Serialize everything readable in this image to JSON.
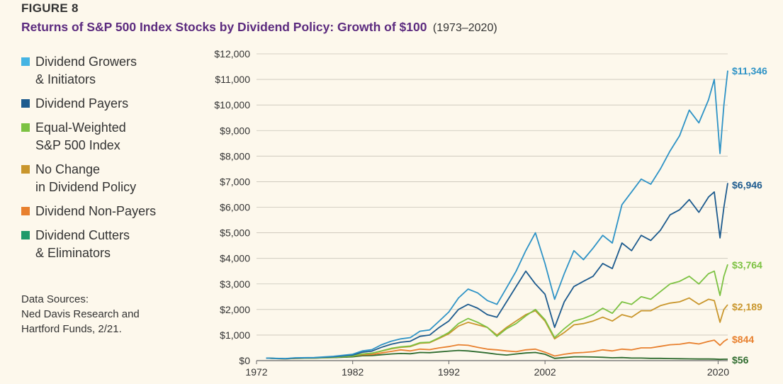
{
  "figure_label": "FIGURE 8",
  "title": "Returns of S&P 500 Index Stocks by Dividend Policy: Growth of $100",
  "title_years": "(1973–2020)",
  "source_note": "Data Sources:\nNed Davis Research and\nHartford Funds, 2/21.",
  "chart_data": {
    "type": "line",
    "title": "Returns of S&P 500 Index Stocks by Dividend Policy: Growth of $100",
    "subtitle": "(1973–2020)",
    "xlabel": "",
    "ylabel": "",
    "xlim": [
      1972,
      2021
    ],
    "ylim": [
      0,
      12000
    ],
    "x_ticks": [
      1972,
      1982,
      1992,
      2002,
      2020
    ],
    "y_ticks": [
      0,
      1000,
      2000,
      3000,
      4000,
      5000,
      6000,
      7000,
      8000,
      9000,
      10000,
      11000,
      12000
    ],
    "y_tick_labels": [
      "$0",
      "$1,000",
      "$2,000",
      "$3,000",
      "$4,000",
      "$5,000",
      "$6,000",
      "$7,000",
      "$8,000",
      "$9,000",
      "$10,000",
      "$11,000",
      "$12,000"
    ],
    "grid": "horizontal",
    "legend_position": "left",
    "series": [
      {
        "name": "Dividend Growers & Initiators",
        "legend_text": "Dividend Growers\n& Initiators",
        "color": "#45b4e3",
        "line_color": "#2e93c6",
        "end_label": "$11,346",
        "x": [
          1973,
          1974,
          1975,
          1976,
          1978,
          1980,
          1982,
          1983,
          1984,
          1985,
          1986,
          1987,
          1988,
          1989,
          1990,
          1991,
          1992,
          1993,
          1994,
          1995,
          1996,
          1997,
          1998,
          1999,
          2000,
          2001,
          2002,
          2003,
          2004,
          2005,
          2006,
          2007,
          2008,
          2009,
          2010,
          2011,
          2012,
          2013,
          2014,
          2015,
          2016,
          2017,
          2018,
          2019,
          2019.6,
          2020.2,
          2020.6,
          2021
        ],
        "y": [
          100,
          90,
          80,
          110,
          120,
          170,
          250,
          380,
          430,
          620,
          760,
          850,
          900,
          1150,
          1200,
          1550,
          1900,
          2450,
          2800,
          2650,
          2350,
          2200,
          2850,
          3500,
          4300,
          5000,
          3800,
          2400,
          3400,
          4300,
          3950,
          4400,
          4900,
          4600,
          6100,
          6600,
          7100,
          6900,
          7500,
          8200,
          8800,
          9800,
          9300,
          10200,
          11000,
          8100,
          10000,
          11346
        ]
      },
      {
        "name": "Dividend Payers",
        "legend_text": "Dividend Payers",
        "color": "#1d5b8e",
        "line_color": "#1d5b8e",
        "end_label": "$6,946",
        "x": [
          1973,
          1974,
          1975,
          1976,
          1978,
          1980,
          1982,
          1983,
          1984,
          1985,
          1986,
          1987,
          1988,
          1989,
          1990,
          1991,
          1992,
          1993,
          1994,
          1995,
          1996,
          1997,
          1998,
          1999,
          2000,
          2001,
          2002,
          2003,
          2004,
          2005,
          2006,
          2007,
          2008,
          2009,
          2010,
          2011,
          2012,
          2013,
          2014,
          2015,
          2016,
          2017,
          2018,
          2019,
          2019.6,
          2020.2,
          2020.6,
          2021
        ],
        "y": [
          100,
          85,
          75,
          100,
          110,
          150,
          220,
          330,
          370,
          520,
          640,
          720,
          760,
          950,
          1000,
          1300,
          1550,
          2000,
          2200,
          2050,
          1800,
          1700,
          2300,
          2900,
          3500,
          3000,
          2600,
          1300,
          2300,
          2900,
          3100,
          3300,
          3800,
          3600,
          4600,
          4300,
          4900,
          4700,
          5100,
          5700,
          5900,
          6300,
          5800,
          6400,
          6600,
          4800,
          6000,
          6946
        ]
      },
      {
        "name": "Equal-Weighted S&P 500 Index",
        "legend_text": "Equal-Weighted\nS&P 500 Index",
        "color": "#7cc242",
        "line_color": "#7cc242",
        "end_label": "$3,764",
        "x": [
          1973,
          1974,
          1975,
          1976,
          1978,
          1980,
          1982,
          1983,
          1984,
          1985,
          1986,
          1987,
          1988,
          1989,
          1990,
          1991,
          1992,
          1993,
          1994,
          1995,
          1996,
          1997,
          1998,
          1999,
          2000,
          2001,
          2002,
          2003,
          2004,
          2005,
          2006,
          2007,
          2008,
          2009,
          2010,
          2011,
          2012,
          2013,
          2014,
          2015,
          2016,
          2017,
          2018,
          2019,
          2019.6,
          2020.2,
          2020.6,
          2021
        ],
        "y": [
          100,
          85,
          75,
          95,
          100,
          130,
          180,
          260,
          290,
          380,
          480,
          540,
          570,
          700,
          720,
          900,
          1100,
          1450,
          1650,
          1500,
          1300,
          950,
          1250,
          1450,
          1750,
          2000,
          1600,
          900,
          1250,
          1550,
          1650,
          1800,
          2050,
          1850,
          2300,
          2200,
          2500,
          2400,
          2700,
          3000,
          3100,
          3300,
          3000,
          3400,
          3500,
          2550,
          3300,
          3764
        ]
      },
      {
        "name": "No Change in Dividend Policy",
        "legend_text": "No Change\nin Dividend Policy",
        "color": "#c9962c",
        "line_color": "#c9962c",
        "end_label": "$2,189",
        "x": [
          1973,
          1974,
          1975,
          1976,
          1978,
          1980,
          1982,
          1983,
          1984,
          1985,
          1986,
          1987,
          1988,
          1989,
          1990,
          1991,
          1992,
          1993,
          1994,
          1995,
          1996,
          1997,
          1998,
          1999,
          2000,
          2001,
          2002,
          2003,
          2004,
          2005,
          2006,
          2007,
          2008,
          2009,
          2010,
          2011,
          2012,
          2013,
          2014,
          2015,
          2016,
          2017,
          2018,
          2019,
          2019.6,
          2020.2,
          2020.6,
          2021
        ],
        "y": [
          100,
          85,
          75,
          95,
          100,
          130,
          180,
          260,
          290,
          370,
          460,
          520,
          550,
          680,
          700,
          870,
          1050,
          1350,
          1500,
          1400,
          1300,
          1000,
          1300,
          1550,
          1800,
          1950,
          1550,
          850,
          1100,
          1400,
          1450,
          1550,
          1700,
          1550,
          1800,
          1700,
          1950,
          1950,
          2150,
          2250,
          2300,
          2450,
          2200,
          2400,
          2350,
          1500,
          2000,
          2189
        ]
      },
      {
        "name": "Dividend Non-Payers",
        "legend_text": "Dividend Non-Payers",
        "color": "#e8802e",
        "line_color": "#e8802e",
        "end_label": "$844",
        "x": [
          1973,
          1974,
          1975,
          1976,
          1978,
          1980,
          1982,
          1983,
          1984,
          1985,
          1986,
          1987,
          1988,
          1989,
          1990,
          1991,
          1992,
          1993,
          1994,
          1995,
          1996,
          1997,
          1998,
          1999,
          2000,
          2001,
          2002,
          2003,
          2004,
          2005,
          2006,
          2007,
          2008,
          2009,
          2010,
          2011,
          2012,
          2013,
          2014,
          2015,
          2016,
          2017,
          2018,
          2019,
          2019.6,
          2020.2,
          2020.6,
          2021
        ],
        "y": [
          100,
          80,
          70,
          90,
          100,
          130,
          180,
          230,
          240,
          300,
          360,
          420,
          380,
          450,
          430,
          500,
          550,
          620,
          600,
          520,
          450,
          420,
          380,
          350,
          420,
          450,
          330,
          180,
          250,
          300,
          320,
          350,
          420,
          380,
          450,
          420,
          500,
          500,
          560,
          620,
          640,
          700,
          650,
          750,
          800,
          600,
          750,
          844
        ]
      },
      {
        "name": "Dividend Cutters & Eliminators",
        "legend_text": "Dividend Cutters\n& Eliminators",
        "color": "#1f9a6a",
        "line_color": "#2e6b2e",
        "end_label": "$56",
        "x": [
          1973,
          1974,
          1975,
          1976,
          1978,
          1980,
          1982,
          1983,
          1984,
          1985,
          1986,
          1987,
          1988,
          1989,
          1990,
          1991,
          1992,
          1993,
          1994,
          1995,
          1996,
          1997,
          1998,
          1999,
          2000,
          2001,
          2002,
          2003,
          2004,
          2005,
          2006,
          2007,
          2008,
          2009,
          2010,
          2011,
          2012,
          2013,
          2014,
          2015,
          2016,
          2017,
          2018,
          2019,
          2019.6,
          2020.2,
          2020.6,
          2021
        ],
        "y": [
          100,
          80,
          70,
          90,
          100,
          120,
          150,
          190,
          200,
          230,
          260,
          280,
          270,
          320,
          310,
          340,
          370,
          400,
          380,
          340,
          300,
          250,
          220,
          260,
          300,
          320,
          250,
          90,
          120,
          150,
          150,
          140,
          130,
          110,
          120,
          100,
          100,
          90,
          90,
          80,
          75,
          70,
          65,
          65,
          62,
          50,
          55,
          56
        ]
      }
    ]
  }
}
